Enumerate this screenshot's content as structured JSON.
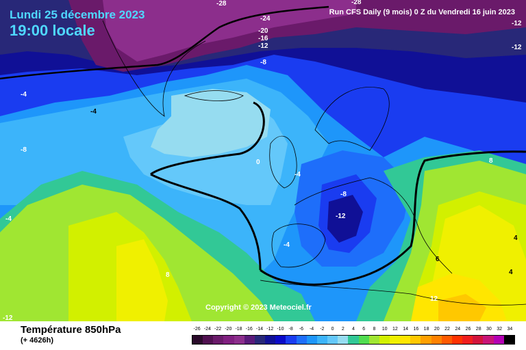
{
  "header": {
    "date": "Lundi 25 décembre 2023",
    "time": "19:00 locale",
    "run": "Run CFS Daily (9 mois) 0 Z du Vendredi 16 juin 2023"
  },
  "copyright": "Copyright © 2023 Meteociel.fr",
  "footer": {
    "variable": "Température 850hPa",
    "lead": "(+ 4626h)"
  },
  "legend": {
    "values": [
      "-26",
      "-24",
      "-22",
      "-20",
      "-18",
      "-16",
      "-14",
      "-12",
      "-10",
      "-8",
      "-6",
      "-4",
      "-2",
      "0",
      "2",
      "4",
      "6",
      "8",
      "10",
      "12",
      "14",
      "16",
      "18",
      "20",
      "22",
      "24",
      "26",
      "28",
      "30",
      "32",
      "34"
    ],
    "colors": [
      "#2a0a2a",
      "#501050",
      "#6a1a6a",
      "#801f80",
      "#8c2e8c",
      "#5a1a7a",
      "#282878",
      "#101096",
      "#0a0ac8",
      "#1a3cf0",
      "#1e6efa",
      "#1e96fa",
      "#3cb4fa",
      "#64c8fa",
      "#96dcf0",
      "#32c896",
      "#50dc50",
      "#a0e632",
      "#d2f000",
      "#f0f000",
      "#ffe600",
      "#ffc800",
      "#ffa000",
      "#ff8200",
      "#ff5a00",
      "#ff3200",
      "#f01e1e",
      "#d2143c",
      "#c81478",
      "#b400b4",
      "#000000"
    ]
  },
  "map": {
    "colors": {
      "deep_purple": "#6a1a6a",
      "purple": "#8c2e8c",
      "indigo": "#282878",
      "dark_blue": "#101096",
      "blue": "#1a3cf0",
      "mid_blue": "#1e6efa",
      "light_blue": "#1e96fa",
      "sky": "#3cb4fa",
      "pale_sky": "#64c8fa",
      "cyan": "#96dcf0",
      "green": "#32c896",
      "lime": "#a0e632",
      "yellow_green": "#d2f000",
      "yellow": "#f0f000",
      "gold": "#ffe600",
      "orange": "#ffc800"
    },
    "contour_labels": [
      {
        "text": "-28",
        "color": "#ffffff"
      },
      {
        "text": "-28",
        "color": "#ffffff"
      },
      {
        "text": "-24",
        "color": "#ffffff"
      },
      {
        "text": "-20",
        "color": "#ffffff"
      },
      {
        "text": "-16",
        "color": "#ffffff"
      },
      {
        "text": "-12",
        "color": "#ffffff"
      },
      {
        "text": "-12",
        "color": "#ffffff"
      },
      {
        "text": "-12",
        "color": "#ffffff"
      },
      {
        "text": "-8",
        "color": "#ffffff"
      },
      {
        "text": "-4",
        "color": "#ffffff"
      },
      {
        "text": "-4",
        "color": "#000000"
      },
      {
        "text": "-8",
        "color": "#ffffff"
      },
      {
        "text": "0",
        "color": "#ffffff"
      },
      {
        "text": "-4",
        "color": "#ffffff"
      },
      {
        "text": "-8",
        "color": "#ffffff"
      },
      {
        "text": "-12",
        "color": "#ffffff"
      },
      {
        "text": "-4",
        "color": "#ffffff"
      },
      {
        "text": "-4",
        "color": "#ffffff"
      },
      {
        "text": "8",
        "color": "#ffffff"
      },
      {
        "text": "8",
        "color": "#ffffff"
      },
      {
        "text": "4",
        "color": "#000000"
      },
      {
        "text": "6",
        "color": "#000000"
      },
      {
        "text": "4",
        "color": "#000000"
      },
      {
        "text": "12",
        "color": "#ffffff"
      },
      {
        "text": "-12",
        "color": "#ffffff"
      }
    ]
  }
}
